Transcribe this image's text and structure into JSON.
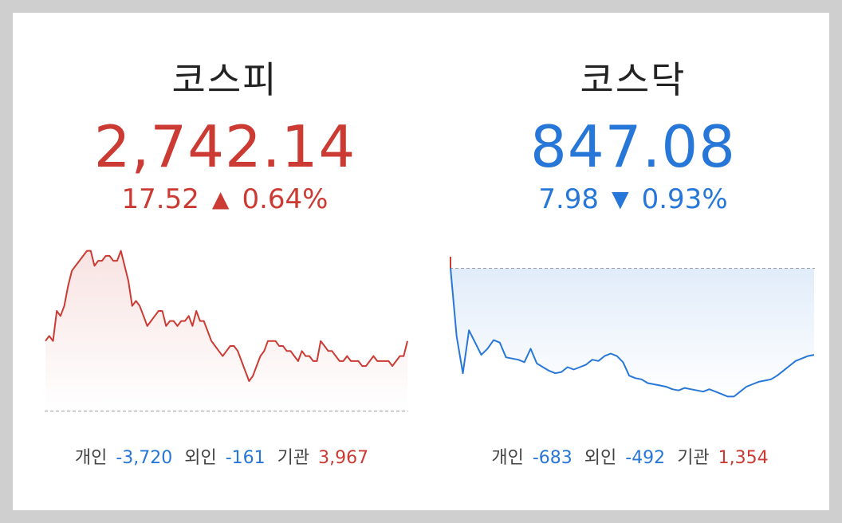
{
  "kospi": {
    "title": "코스피",
    "value": "2,742.14",
    "change": "17.52",
    "direction_icon": "triangle-up",
    "direction_glyph": "▲",
    "percent": "0.64%",
    "color": "#cc3b33",
    "flows": {
      "individual_label": "개인",
      "individual": "-3,720",
      "foreign_label": "외인",
      "foreign": "-161",
      "institution_label": "기관",
      "institution": "3,967"
    }
  },
  "kosdaq": {
    "title": "코스닥",
    "value": "847.08",
    "change": "7.98",
    "direction_icon": "triangle-down",
    "direction_glyph": "▼",
    "percent": "0.93%",
    "color": "#2777d8",
    "flows": {
      "individual_label": "개인",
      "individual": "-683",
      "foreign_label": "외인",
      "foreign": "-492",
      "institution_label": "기관",
      "institution": "1,354"
    }
  },
  "chart_data": [
    {
      "type": "area",
      "series": [
        {
          "values": [
            2730,
            2731,
            2730,
            2736,
            2735,
            2737,
            2741,
            2744,
            2745,
            2746,
            2747,
            2748,
            2748,
            2745,
            2746,
            2746,
            2747,
            2747,
            2746,
            2746,
            2748,
            2745,
            2742,
            2737,
            2738,
            2737,
            2735,
            2733,
            2734,
            2735,
            2736,
            2736,
            2733,
            2734,
            2734,
            2733,
            2734,
            2734,
            2735,
            2733,
            2736,
            2734,
            2734,
            2732,
            2730,
            2729,
            2728,
            2727,
            2728,
            2729,
            2729,
            2728,
            2726,
            2724,
            2722,
            2723,
            2725,
            2727,
            2728,
            2730,
            2730,
            2730,
            2729,
            2729,
            2728,
            2728,
            2727,
            2726,
            2728,
            2727,
            2727,
            2726,
            2726,
            2730,
            2729,
            2728,
            2728,
            2727,
            2726,
            2726,
            2727,
            2726,
            2726,
            2726,
            2725,
            2725,
            2726,
            2727,
            2726,
            2726,
            2726,
            2726,
            2725,
            2726,
            2727,
            2727,
            2730
          ]
        }
      ],
      "reference_line": "previous close (dashed)",
      "ylim": [
        2715,
        2750
      ]
    },
    {
      "type": "area",
      "series": [
        {
          "values": [
            855.06,
            849.5,
            846.5,
            850,
            849,
            848,
            848.5,
            849.2,
            849,
            847.8,
            847.7,
            847.6,
            847.4,
            848.5,
            847.3,
            847,
            846.7,
            846.5,
            846.6,
            847,
            846.8,
            847,
            847.2,
            847.6,
            847.5,
            847.9,
            848.1,
            847.9,
            847.4,
            846.3,
            846.1,
            846,
            845.7,
            845.6,
            845.5,
            845.4,
            845.2,
            845.1,
            845.3,
            845.2,
            845.1,
            845.0,
            845.2,
            845.0,
            844.8,
            844.6,
            844.6,
            845.0,
            845.4,
            845.6,
            845.8,
            845.9,
            846.0,
            846.3,
            846.7,
            847.1,
            847.5,
            847.7,
            847.9,
            848.0
          ]
        }
      ],
      "reference_line": "previous close (dashed)",
      "ylim": [
        843,
        856
      ]
    }
  ]
}
